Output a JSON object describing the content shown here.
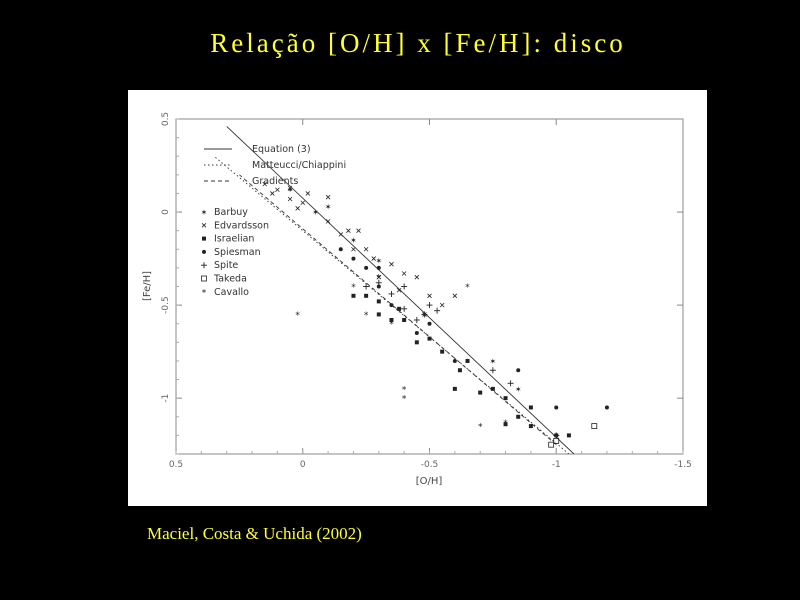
{
  "slide": {
    "title": "Relação [O/H] x [Fe/H]:  disco",
    "citation": "Maciel, Costa & Uchida (2002)"
  },
  "colors": {
    "background": "#000000",
    "title": "#ffff33",
    "panel": "#ffffff"
  },
  "chart_data": {
    "type": "scatter",
    "title": "",
    "xlabel": "[O/H]",
    "ylabel": "[Fe/H]",
    "xlim": [
      -1.5,
      0.5
    ],
    "ylim": [
      -1.3,
      0.5
    ],
    "x_reversed": true,
    "xticks": [
      -1.5,
      -1,
      -0.5,
      0,
      0.5
    ],
    "xtick_labels": [
      "-1.5",
      "-1",
      "-0.5",
      "0",
      "0.5"
    ],
    "yticks": [
      -1,
      -0.5,
      0,
      0.5
    ],
    "ytick_labels": [
      "-1",
      "-0.5",
      "0",
      "0.5"
    ],
    "grid": false,
    "legend_position": "top-left",
    "lines": [
      {
        "name": "Equation (3)",
        "style": "solid",
        "x": [
          -1.07,
          0.3
        ],
        "y": [
          -1.3,
          0.46
        ]
      },
      {
        "name": "Matteucci/Chiappini",
        "style": "dotted",
        "x": [
          -1.05,
          0.35
        ],
        "y": [
          -1.3,
          0.3
        ]
      },
      {
        "name": "Gradients",
        "style": "dashed",
        "x": [
          -1.0,
          0.25
        ],
        "y": [
          -1.25,
          0.2
        ]
      }
    ],
    "series": [
      {
        "name": "Barbuy",
        "marker": "star",
        "points": [
          [
            -0.1,
            0.03
          ],
          [
            -0.05,
            0.0
          ],
          [
            0.05,
            0.12
          ],
          [
            -0.3,
            -0.26
          ],
          [
            -0.2,
            -0.15
          ],
          [
            -0.75,
            -0.8
          ],
          [
            -0.85,
            -0.95
          ]
        ]
      },
      {
        "name": "Edvardsson",
        "marker": "x",
        "points": [
          [
            -0.02,
            0.1
          ],
          [
            0.0,
            0.05
          ],
          [
            0.05,
            0.07
          ],
          [
            0.1,
            0.12
          ],
          [
            0.12,
            0.1
          ],
          [
            0.15,
            0.15
          ],
          [
            0.05,
            0.13
          ],
          [
            -0.1,
            -0.05
          ],
          [
            -0.18,
            -0.1
          ],
          [
            -0.25,
            -0.2
          ],
          [
            -0.28,
            -0.25
          ],
          [
            -0.35,
            -0.28
          ],
          [
            -0.4,
            -0.33
          ],
          [
            -0.15,
            -0.12
          ],
          [
            -0.2,
            -0.2
          ],
          [
            -0.45,
            -0.35
          ],
          [
            -0.5,
            -0.45
          ],
          [
            -0.3,
            -0.35
          ],
          [
            -0.55,
            -0.5
          ],
          [
            -0.6,
            -0.45
          ],
          [
            -0.38,
            -0.42
          ],
          [
            -0.48,
            -0.55
          ],
          [
            -0.1,
            0.08
          ],
          [
            0.02,
            0.02
          ],
          [
            -0.22,
            -0.1
          ]
        ]
      },
      {
        "name": "Israelian",
        "marker": "filled-square",
        "points": [
          [
            -1.05,
            -1.2
          ],
          [
            -1.0,
            -1.2
          ],
          [
            -0.9,
            -1.15
          ],
          [
            -0.8,
            -1.14
          ],
          [
            -0.85,
            -1.1
          ],
          [
            -0.8,
            -1.0
          ],
          [
            -0.75,
            -0.95
          ],
          [
            -0.7,
            -0.97
          ],
          [
            -0.9,
            -1.05
          ],
          [
            -0.6,
            -0.95
          ],
          [
            -0.62,
            -0.85
          ],
          [
            -0.65,
            -0.8
          ],
          [
            -0.55,
            -0.75
          ],
          [
            -0.5,
            -0.68
          ],
          [
            -0.45,
            -0.7
          ],
          [
            -0.4,
            -0.58
          ],
          [
            -0.38,
            -0.52
          ],
          [
            -0.35,
            -0.58
          ],
          [
            -0.3,
            -0.48
          ],
          [
            -0.25,
            -0.45
          ],
          [
            -0.2,
            -0.45
          ],
          [
            -0.3,
            -0.55
          ]
        ]
      },
      {
        "name": "Spiesman",
        "marker": "dot",
        "points": [
          [
            -1.2,
            -1.05
          ],
          [
            -1.0,
            -1.05
          ],
          [
            -0.85,
            -0.85
          ],
          [
            -0.6,
            -0.8
          ],
          [
            -0.5,
            -0.6
          ],
          [
            -0.45,
            -0.65
          ],
          [
            -0.35,
            -0.5
          ],
          [
            -0.3,
            -0.4
          ],
          [
            -0.25,
            -0.3
          ],
          [
            -0.2,
            -0.25
          ],
          [
            -0.15,
            -0.2
          ],
          [
            -0.3,
            -0.3
          ]
        ]
      },
      {
        "name": "Spite",
        "marker": "plus",
        "points": [
          [
            -0.75,
            -0.85
          ],
          [
            -0.5,
            -0.5
          ],
          [
            -0.53,
            -0.53
          ],
          [
            -0.48,
            -0.55
          ],
          [
            -0.45,
            -0.58
          ],
          [
            -0.4,
            -0.52
          ],
          [
            -0.35,
            -0.44
          ],
          [
            -0.3,
            -0.38
          ],
          [
            -0.25,
            -0.4
          ],
          [
            -0.82,
            -0.92
          ],
          [
            -1.0,
            -1.2
          ],
          [
            -0.4,
            -0.4
          ]
        ]
      },
      {
        "name": "Takeda",
        "marker": "open-square",
        "points": [
          [
            -1.15,
            -1.15
          ],
          [
            -1.0,
            -1.23
          ],
          [
            -0.98,
            -1.25
          ]
        ]
      },
      {
        "name": "Cavallo",
        "marker": "asterisk",
        "points": [
          [
            -0.65,
            -0.4
          ],
          [
            -0.4,
            -0.95
          ],
          [
            -0.4,
            -1.0
          ],
          [
            -0.3,
            -0.35
          ],
          [
            -0.25,
            -0.55
          ],
          [
            -0.2,
            -0.4
          ],
          [
            -0.8,
            -1.13
          ],
          [
            -0.7,
            -1.15
          ],
          [
            0.02,
            -0.55
          ],
          [
            -0.35,
            -0.6
          ]
        ]
      }
    ]
  }
}
